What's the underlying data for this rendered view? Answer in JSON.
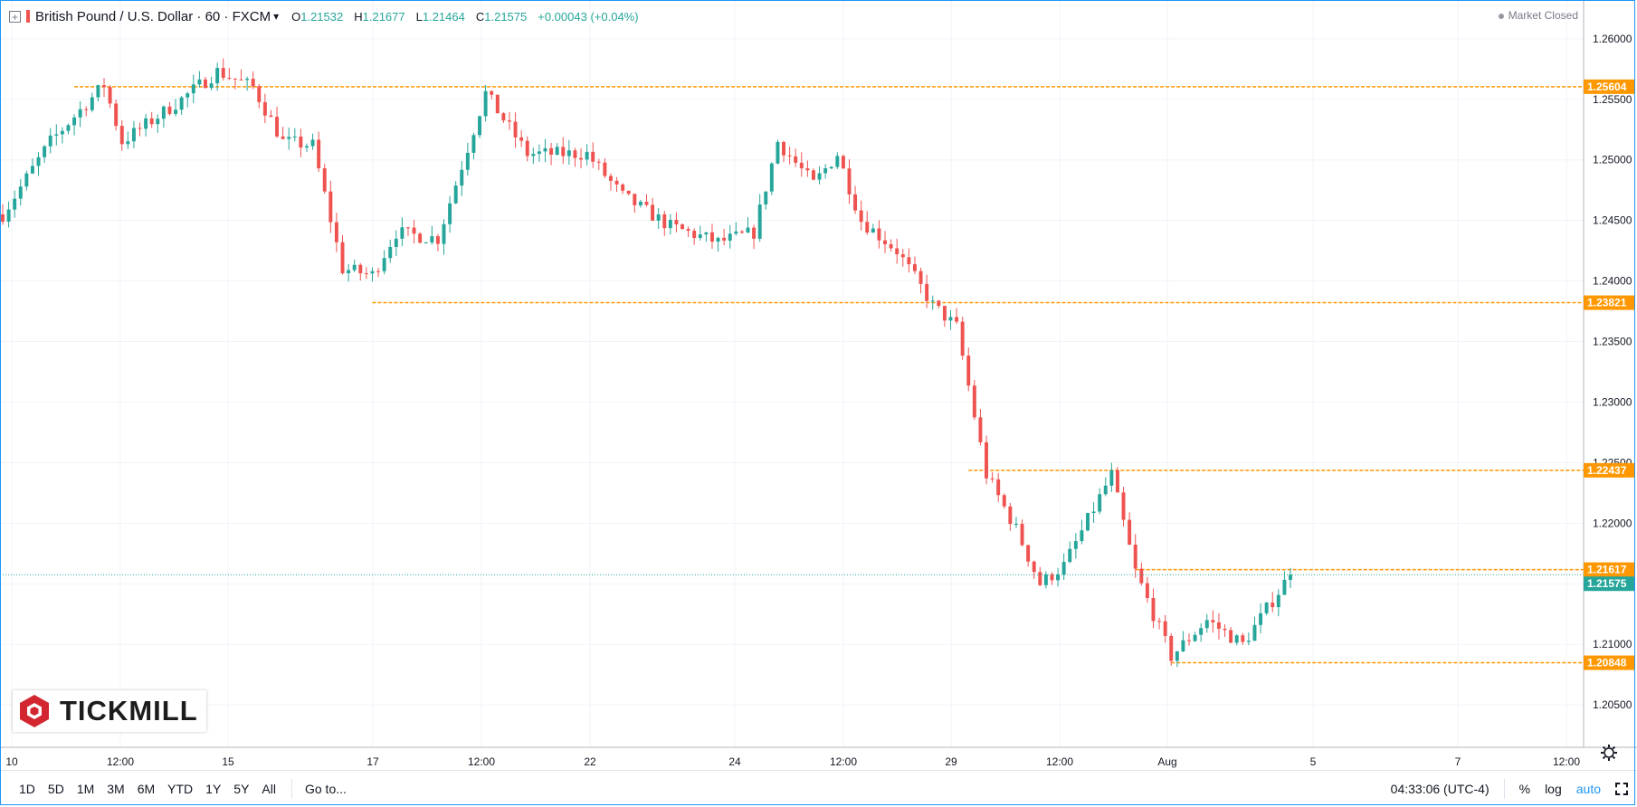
{
  "legend": {
    "symbol": "British Pound / U.S. Dollar · 60 · FXCM",
    "open_k": "O",
    "open": "1.21532",
    "high_k": "H",
    "high": "1.21677",
    "low_k": "L",
    "low": "1.21464",
    "close_k": "C",
    "close": "1.21575",
    "change": "+0.00043 (+0.04%)"
  },
  "status": "Market Closed",
  "chart_data": {
    "type": "candlestick",
    "ylim": [
      1.2015,
      1.2632
    ],
    "y_ticks": [
      "1.26000",
      "1.25500",
      "1.25000",
      "1.24500",
      "1.24000",
      "1.23500",
      "1.23000",
      "1.22500",
      "1.22000",
      "1.21500",
      "1.21000",
      "1.20500"
    ],
    "x_ticks": [
      "10",
      "12:00",
      "15",
      "17",
      "12:00",
      "22",
      "24",
      "12:00",
      "29",
      "12:00",
      "Aug",
      "5",
      "7",
      "12:00"
    ],
    "levels": [
      {
        "label": "1.25604",
        "value": 1.25604,
        "from_bar": 12
      },
      {
        "label": "1.23821",
        "value": 1.23821,
        "from_bar": 62
      },
      {
        "label": "1.22437",
        "value": 1.22437,
        "from_bar": 162
      },
      {
        "label": "1.21617",
        "value": 1.21617,
        "from_bar": 190
      },
      {
        "label": "1.20848",
        "value": 1.20848,
        "from_bar": 196
      }
    ],
    "last_price": {
      "label": "1.21575",
      "value": 1.21575
    },
    "anchors": [
      [
        0,
        1.2455
      ],
      [
        8,
        1.2515
      ],
      [
        17,
        1.2562
      ],
      [
        20,
        1.2515
      ],
      [
        30,
        1.255
      ],
      [
        36,
        1.2573
      ],
      [
        42,
        1.256
      ],
      [
        47,
        1.2515
      ],
      [
        52,
        1.2512
      ],
      [
        57,
        1.241
      ],
      [
        62,
        1.2405
      ],
      [
        66,
        1.244
      ],
      [
        73,
        1.2435
      ],
      [
        81,
        1.2555
      ],
      [
        88,
        1.2505
      ],
      [
        98,
        1.2505
      ],
      [
        104,
        1.247
      ],
      [
        112,
        1.2445
      ],
      [
        120,
        1.2432
      ],
      [
        126,
        1.244
      ],
      [
        130,
        1.2515
      ],
      [
        136,
        1.248
      ],
      [
        140,
        1.2505
      ],
      [
        144,
        1.245
      ],
      [
        150,
        1.2425
      ],
      [
        156,
        1.238
      ],
      [
        160,
        1.2362
      ],
      [
        165,
        1.224
      ],
      [
        170,
        1.2195
      ],
      [
        174,
        1.215
      ],
      [
        178,
        1.2165
      ],
      [
        186,
        1.224
      ],
      [
        190,
        1.216
      ],
      [
        196,
        1.209
      ],
      [
        202,
        1.212
      ],
      [
        208,
        1.21
      ],
      [
        216,
        1.2158
      ]
    ],
    "bar_count": 217,
    "bull_color": "#26a69a",
    "bear_color": "#ef5350",
    "level_color": "#ff9800"
  },
  "bottom": {
    "ranges": [
      "1D",
      "5D",
      "1M",
      "3M",
      "6M",
      "YTD",
      "1Y",
      "5Y",
      "All"
    ],
    "goto": "Go to...",
    "time": "04:33:06 (UTC-4)",
    "pct": "%",
    "log": "log",
    "auto": "auto"
  },
  "logo": {
    "text": "TICKMILL"
  }
}
